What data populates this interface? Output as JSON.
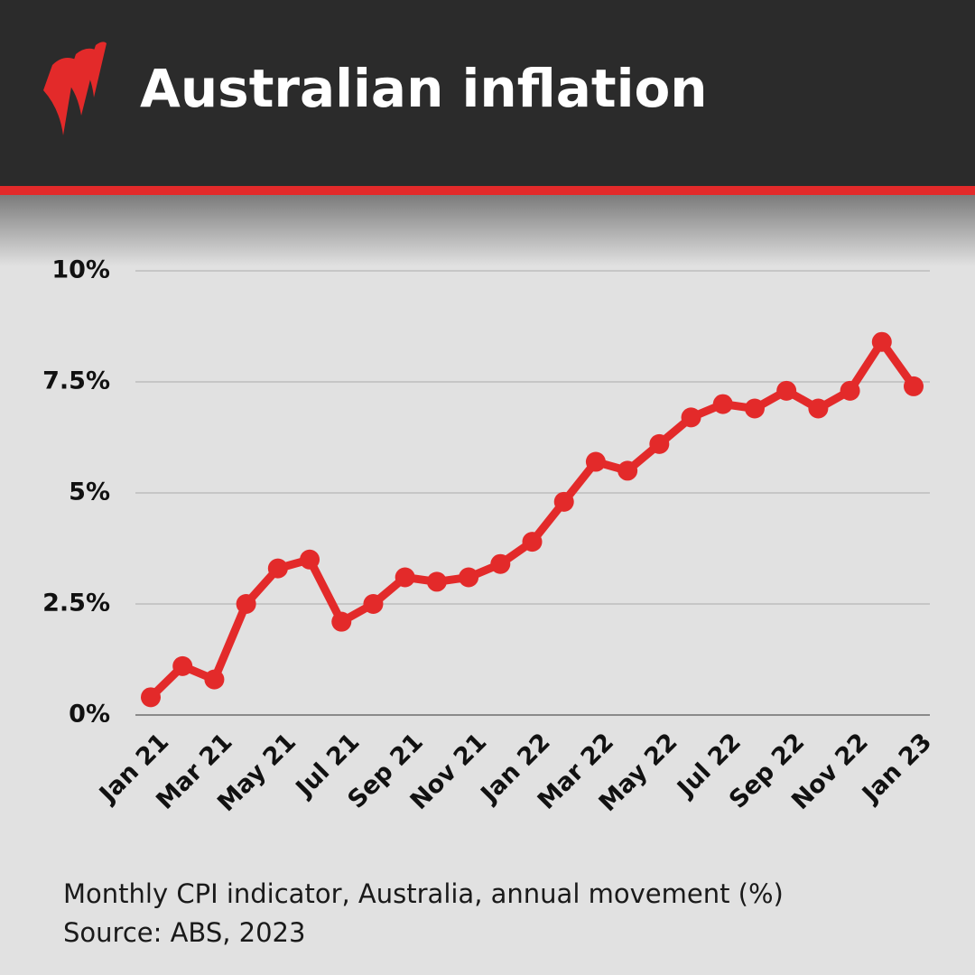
{
  "header": {
    "title": "Australian inflation"
  },
  "chart_data": {
    "type": "line",
    "categories": [
      "Jan 21",
      null,
      "Mar 21",
      null,
      "May 21",
      null,
      "Jul 21",
      null,
      "Sep 21",
      null,
      "Nov 21",
      null,
      "Jan 22",
      null,
      "Mar 22",
      null,
      "May 22",
      null,
      "Jul 22",
      null,
      "Sep 22",
      null,
      "Nov 22",
      null,
      "Jan 23"
    ],
    "values": [
      0.4,
      1.1,
      0.8,
      2.5,
      3.3,
      3.5,
      2.1,
      2.5,
      3.1,
      3.0,
      3.1,
      3.4,
      3.9,
      4.8,
      5.7,
      5.5,
      6.1,
      6.7,
      7.0,
      6.9,
      7.3,
      6.9,
      7.3,
      8.4,
      7.4
    ],
    "color": "#e32a2a",
    "ylim": [
      0,
      10
    ],
    "yticks": [
      {
        "value": 0,
        "label": "0%"
      },
      {
        "value": 2.5,
        "label": "2.5%"
      },
      {
        "value": 5,
        "label": "5%"
      },
      {
        "value": 7.5,
        "label": "7.5%"
      },
      {
        "value": 10,
        "label": "10%"
      }
    ],
    "grid": true,
    "caption": "Monthly CPI indicator, Australia, annual movement (%)",
    "source": "Source: ABS, 2023"
  }
}
